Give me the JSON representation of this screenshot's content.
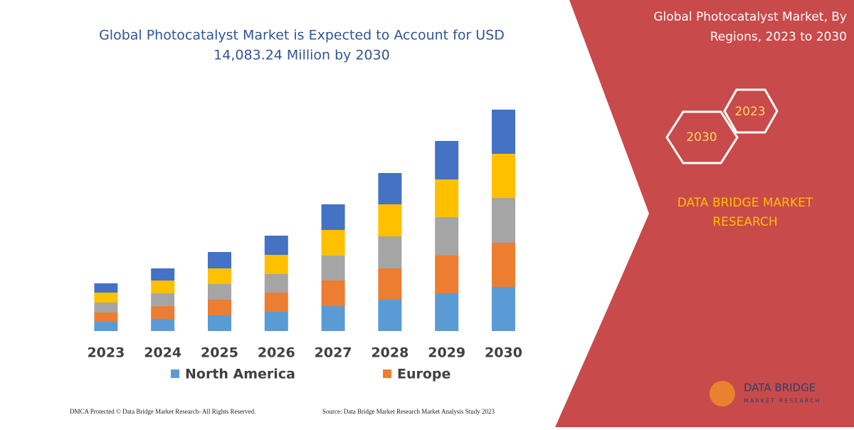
{
  "chart_data": {
    "type": "stacked-bar",
    "title_lines": [
      "Global Photocatalyst Market is Expected to Account for USD",
      "14,083.24 Million by 2030"
    ],
    "categories": [
      "2023",
      "2024",
      "2025",
      "2026",
      "2027",
      "2028",
      "2029",
      "2030"
    ],
    "ylim": [
      0,
      311
    ],
    "series": [
      {
        "name": "North America",
        "color": "#5b9bd5",
        "values": [
          13,
          17,
          22,
          27,
          35,
          44,
          53,
          62
        ]
      },
      {
        "name": "Europe",
        "color": "#ed7d31",
        "values": [
          13,
          18,
          22,
          27,
          36,
          44,
          53,
          62
        ]
      },
      {
        "color": "#a5a5a5",
        "values": [
          14,
          18,
          22,
          26,
          35,
          45,
          54,
          63
        ]
      },
      {
        "color": "#ffc000",
        "values": [
          14,
          18,
          22,
          27,
          36,
          45,
          53,
          62
        ]
      },
      {
        "color": "#4472c4",
        "values": [
          13,
          17,
          23,
          27,
          36,
          44,
          54,
          62
        ]
      }
    ]
  },
  "side_panel": {
    "title_lines": [
      "Global Photocatalyst Market, By",
      "Regions, 2023 to 2030"
    ],
    "hex_labels": [
      "2023",
      "2030"
    ],
    "brand_lines": [
      "DATA BRIDGE MARKET",
      "RESEARCH"
    ],
    "logo_lines": [
      "DATA BRIDGE",
      "MARKET RESEARCH"
    ]
  },
  "footer": {
    "left": "DMCA Protected © Data Bridge Market Research-  All Rights Reserved.",
    "right": "Source: Data Bridge Market Research  Market Analysis Study 2023"
  }
}
